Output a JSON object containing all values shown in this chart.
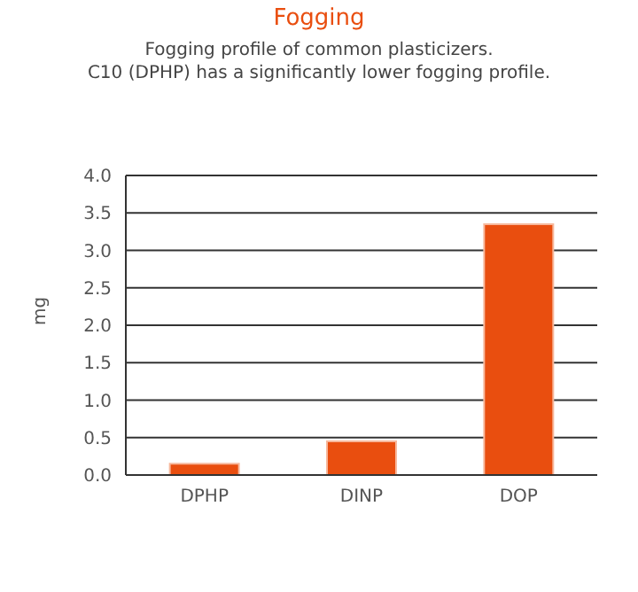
{
  "chart_data": {
    "type": "bar",
    "title": "Fogging",
    "subtitle": "Fogging profile of common plasticizers.\nC10 (DPHP) has a significantly lower fogging profile.",
    "ylabel": "mg",
    "categories": [
      "DPHP",
      "DINP",
      "DOP"
    ],
    "values": [
      0.15,
      0.45,
      3.35
    ],
    "color": "#e94e0f",
    "ylim": [
      0,
      4
    ],
    "yticks": [
      {
        "value": 0,
        "label": "0.0"
      },
      0.5,
      {
        "value": 1,
        "label": "1.0"
      },
      1.5,
      {
        "value": 2,
        "label": "2.0"
      },
      2.5,
      {
        "value": 3,
        "label": "3.0"
      },
      3.5,
      {
        "value": 4,
        "label": "4.0"
      }
    ],
    "grid": "y"
  }
}
